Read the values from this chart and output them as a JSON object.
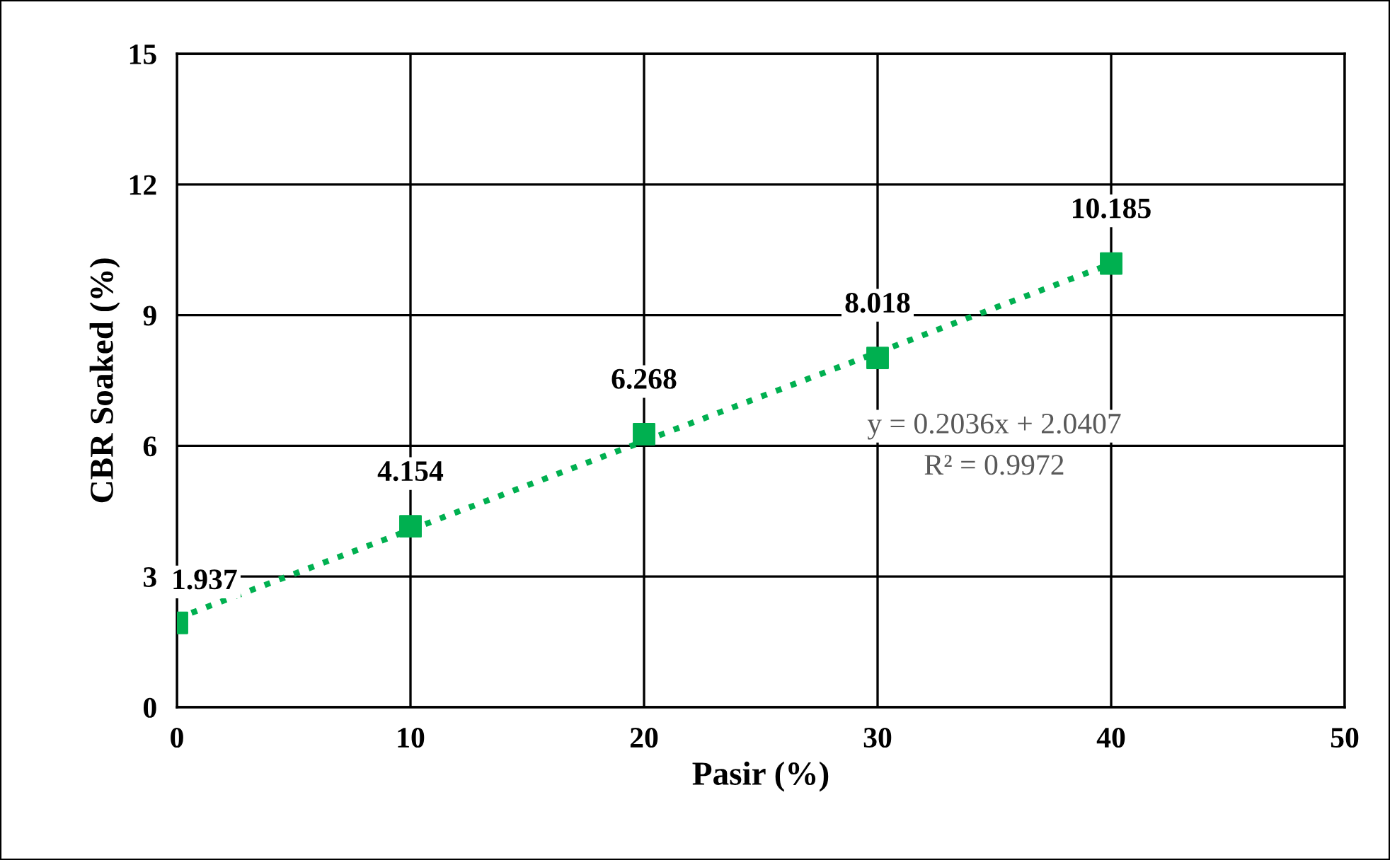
{
  "chart_data": {
    "type": "scatter",
    "xlabel": "Pasir (%)",
    "ylabel": "CBR Soaked (%)",
    "xlim": [
      0,
      50
    ],
    "xticks": [
      0,
      10,
      20,
      30,
      40,
      50
    ],
    "ylim": [
      0,
      15
    ],
    "yticks": [
      0,
      3,
      6,
      9,
      12,
      15
    ],
    "grid": true,
    "legend": false,
    "series": [
      {
        "color": "#00b050",
        "marker": "square",
        "x": [
          0,
          10,
          20,
          30,
          40
        ],
        "values": [
          1.937,
          4.154,
          6.268,
          8.018,
          10.185
        ],
        "value_labels": [
          "1.937",
          "4.154",
          "6.268",
          "8.018",
          "10.185"
        ]
      },
      {
        "type": "line",
        "color": "#00b050",
        "line_style": "dotted",
        "x": [
          0,
          40
        ],
        "values": [
          2.04,
          10.18
        ]
      }
    ],
    "annotations": [
      "y = 0.2036x + 2.0407",
      "R² = 0.9972"
    ]
  }
}
